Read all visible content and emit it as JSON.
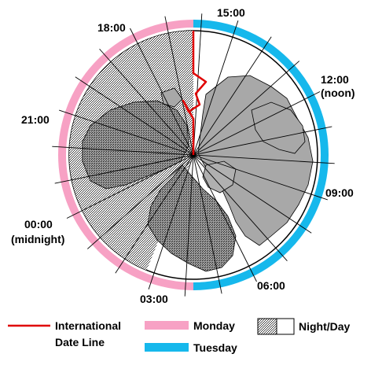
{
  "hour_labels": {
    "h15": "15:00",
    "h18": "18:00",
    "h12": "12:00",
    "h12_note": "(noon)",
    "h21": "21:00",
    "h09": "09:00",
    "h00": "00:00",
    "h00_note": "(midnight)",
    "h06": "06:00",
    "h03": "03:00"
  },
  "days": {
    "monday": {
      "label": "Monday",
      "color": "#f7a1c4"
    },
    "tuesday": {
      "label": "Tuesday",
      "color": "#16b8ec"
    }
  },
  "legend": {
    "date_line_label_1": "International",
    "date_line_label_2": "Date Line",
    "date_line_color": "#e00000",
    "monday_label": "Monday",
    "tuesday_label": "Tuesday",
    "night_day_label": "Night/Day"
  },
  "meridian_count": 24
}
